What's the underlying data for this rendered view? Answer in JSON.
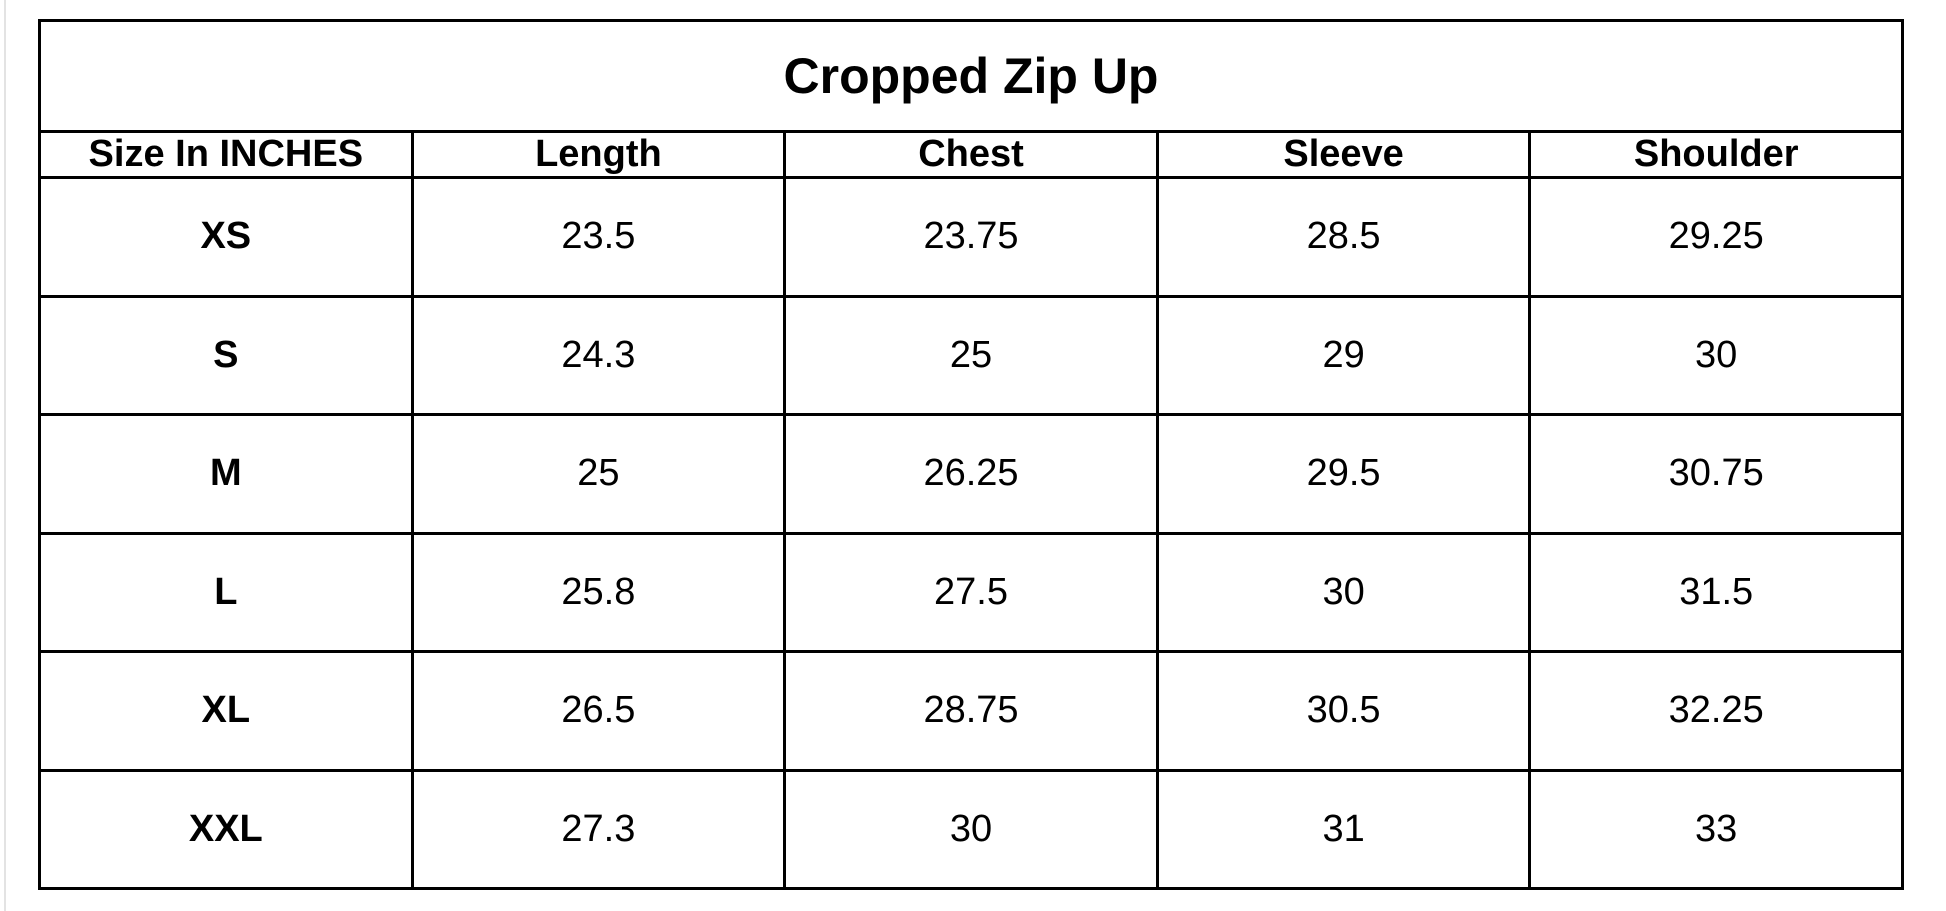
{
  "table": {
    "title": "Cropped Zip Up",
    "header": [
      "Size In INCHES",
      "Length",
      "Chest",
      "Sleeve",
      "Shoulder"
    ],
    "rows": [
      [
        "XS",
        23.5,
        23.75,
        28.5,
        29.25
      ],
      [
        "S",
        24.3,
        25,
        29,
        30
      ],
      [
        "M",
        25,
        26.25,
        29.5,
        30.75
      ],
      [
        "L",
        25.8,
        27.5,
        30,
        31.5
      ],
      [
        "XL",
        26.5,
        28.75,
        30.5,
        32.25
      ],
      [
        "XXL",
        27.3,
        30,
        31,
        33
      ]
    ]
  }
}
